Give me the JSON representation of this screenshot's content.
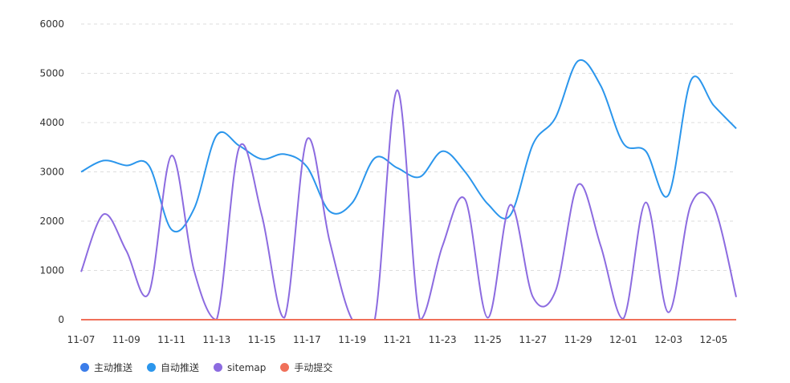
{
  "chart_data": {
    "type": "line",
    "title": "",
    "xlabel": "",
    "ylabel": "",
    "ylim": [
      0,
      6000
    ],
    "yticks": [
      0,
      1000,
      2000,
      3000,
      4000,
      5000,
      6000
    ],
    "grid": true,
    "legend_position": "bottom-left",
    "x": [
      "11-07",
      "11-08",
      "11-09",
      "11-10",
      "11-11",
      "11-12",
      "11-13",
      "11-14",
      "11-15",
      "11-16",
      "11-17",
      "11-18",
      "11-19",
      "11-20",
      "11-21",
      "11-22",
      "11-23",
      "11-24",
      "11-25",
      "11-26",
      "11-27",
      "11-28",
      "11-29",
      "11-30",
      "12-01",
      "12-02",
      "12-03",
      "12-04",
      "12-05",
      "12-06"
    ],
    "xtick_labels": [
      "11-07",
      "11-09",
      "11-11",
      "11-13",
      "11-15",
      "11-17",
      "11-19",
      "11-21",
      "11-23",
      "11-25",
      "11-27",
      "11-29",
      "12-01",
      "12-03",
      "12-05"
    ],
    "series": [
      {
        "name": "主动推送",
        "color": "#3b7de9",
        "values": [
          0,
          0,
          0,
          0,
          0,
          0,
          0,
          0,
          0,
          0,
          0,
          0,
          0,
          0,
          0,
          0,
          0,
          0,
          0,
          0,
          0,
          0,
          0,
          0,
          0,
          0,
          0,
          0,
          0,
          0
        ]
      },
      {
        "name": "自动推送",
        "color": "#2b96ec",
        "values": [
          3000,
          3230,
          3130,
          3130,
          1830,
          2250,
          3740,
          3530,
          3260,
          3360,
          3100,
          2200,
          2370,
          3280,
          3080,
          2900,
          3420,
          3000,
          2350,
          2120,
          3560,
          4100,
          5250,
          4750,
          3580,
          3420,
          2530,
          4860,
          4350,
          3880
        ]
      },
      {
        "name": "sitemap",
        "color": "#8c6be0",
        "values": [
          970,
          2140,
          1400,
          540,
          3330,
          1000,
          0,
          3500,
          2120,
          40,
          3660,
          1600,
          0,
          0,
          4660,
          0,
          1500,
          2440,
          40,
          2330,
          460,
          580,
          2740,
          1500,
          20,
          2380,
          150,
          2340,
          2320,
          460
        ]
      },
      {
        "name": "手动提交",
        "color": "#f0705a",
        "values": [
          0,
          0,
          0,
          0,
          0,
          0,
          0,
          0,
          0,
          0,
          0,
          0,
          0,
          0,
          0,
          0,
          0,
          0,
          0,
          0,
          0,
          0,
          0,
          0,
          0,
          0,
          0,
          0,
          0,
          0
        ]
      }
    ]
  }
}
